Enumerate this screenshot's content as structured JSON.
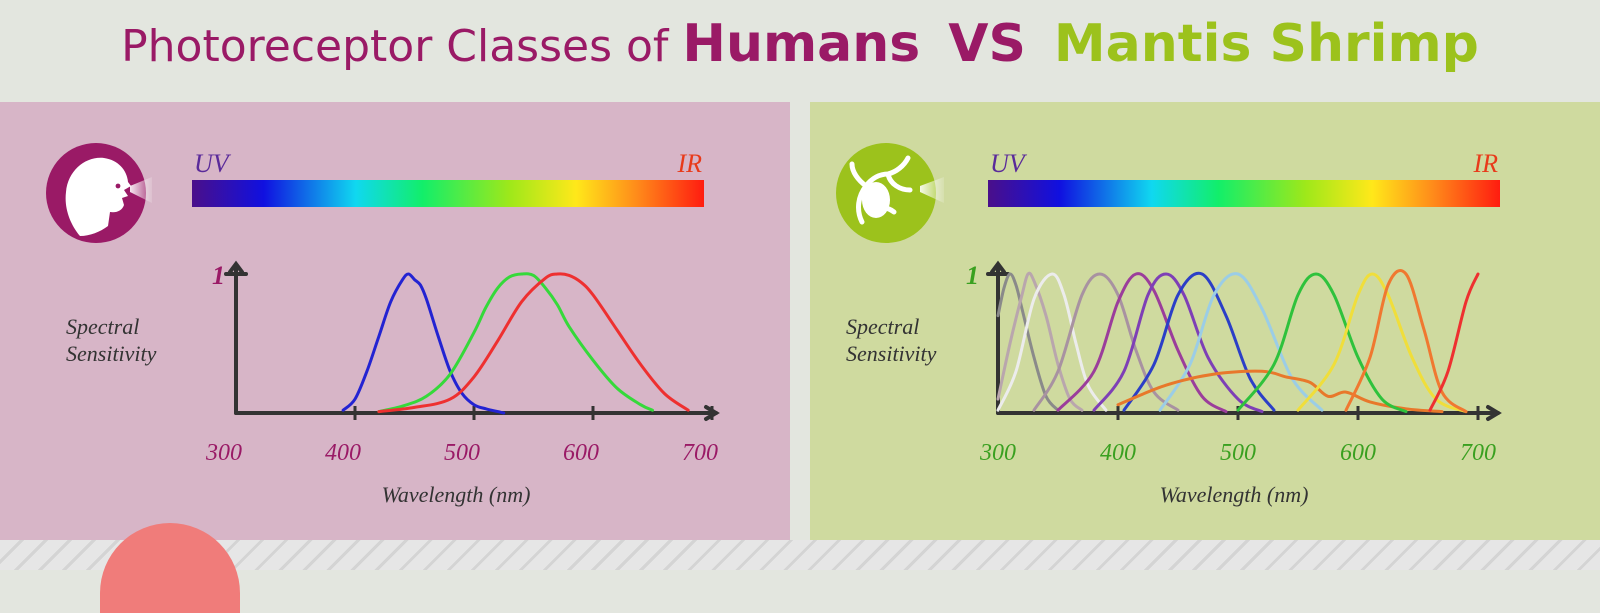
{
  "title": {
    "part1": "Photoreceptor Classes of",
    "part2": "Humans",
    "part3": "VS",
    "part4": "Mantis Shrimp"
  },
  "colors": {
    "magenta": "#9a1a66",
    "green": "#9cc21c",
    "human_bg": "#d7b5c7",
    "shrimp_bg": "#cfda9f",
    "uv_label": "#5a2a9a",
    "ir_label": "#e83a1a"
  },
  "icons": {
    "human": "human-head-eye-icon",
    "shrimp": "mantis-shrimp-icon"
  },
  "chart_data": [
    {
      "type": "line",
      "title": "Humans",
      "spectrum_labels": {
        "left": "UV",
        "right": "IR"
      },
      "xlabel": "Wavelength (nm)",
      "ylabel": "Spectral Sensitivity",
      "xticks": [
        "300",
        "400",
        "500",
        "600",
        "700"
      ],
      "yticks": [
        "1"
      ],
      "xlim": [
        300,
        700
      ],
      "ylim": [
        0,
        1
      ],
      "series": [
        {
          "color": "#2323d2",
          "x": [
            390,
            400,
            410,
            420,
            430,
            440,
            445,
            450,
            455,
            460,
            470,
            480,
            490,
            500,
            510,
            520,
            525
          ],
          "y": [
            0.02,
            0.1,
            0.3,
            0.55,
            0.8,
            0.96,
            1.0,
            0.96,
            0.92,
            0.82,
            0.55,
            0.3,
            0.14,
            0.06,
            0.03,
            0.01,
            0.0
          ]
        },
        {
          "color": "#35d93a",
          "x": [
            420,
            440,
            460,
            480,
            500,
            510,
            520,
            530,
            540,
            550,
            560,
            570,
            580,
            600,
            620,
            640,
            650
          ],
          "y": [
            0.01,
            0.05,
            0.12,
            0.28,
            0.58,
            0.76,
            0.9,
            0.98,
            1.0,
            0.99,
            0.9,
            0.78,
            0.62,
            0.38,
            0.18,
            0.06,
            0.02
          ]
        },
        {
          "color": "#ee3030",
          "x": [
            420,
            450,
            480,
            500,
            520,
            540,
            560,
            570,
            580,
            590,
            600,
            620,
            640,
            660,
            680
          ],
          "y": [
            0.01,
            0.04,
            0.1,
            0.26,
            0.52,
            0.8,
            0.97,
            1.0,
            0.99,
            0.94,
            0.85,
            0.6,
            0.35,
            0.14,
            0.02
          ]
        }
      ]
    },
    {
      "type": "line",
      "title": "Mantis Shrimp",
      "spectrum_labels": {
        "left": "UV",
        "right": "IR"
      },
      "xlabel": "Wavelength (nm)",
      "ylabel": "Spectral Sensitivity",
      "xticks": [
        "300",
        "400",
        "500",
        "600",
        "700"
      ],
      "yticks": [
        "1"
      ],
      "xlim": [
        300,
        700
      ],
      "ylim": [
        0,
        1
      ],
      "series": [
        {
          "color": "#8a8a8a",
          "x": [
            300,
            305,
            310,
            315,
            320,
            330,
            340,
            350
          ],
          "y": [
            0.7,
            0.9,
            1.0,
            0.92,
            0.75,
            0.4,
            0.12,
            0.02
          ]
        },
        {
          "color": "#b9a6ad",
          "x": [
            300,
            310,
            320,
            325,
            330,
            340,
            350,
            360,
            370
          ],
          "y": [
            0.1,
            0.5,
            0.85,
            1.0,
            0.95,
            0.7,
            0.35,
            0.1,
            0.02
          ]
        },
        {
          "color": "#ececec",
          "x": [
            300,
            315,
            330,
            345,
            355,
            365,
            375,
            390
          ],
          "y": [
            0.02,
            0.3,
            0.82,
            1.0,
            0.85,
            0.5,
            0.2,
            0.02
          ]
        },
        {
          "color": "#a892a1",
          "x": [
            330,
            350,
            370,
            385,
            400,
            415,
            430,
            450
          ],
          "y": [
            0.02,
            0.3,
            0.85,
            1.0,
            0.85,
            0.45,
            0.15,
            0.02
          ]
        },
        {
          "color": "#9b3d9b",
          "x": [
            350,
            380,
            400,
            415,
            430,
            450,
            470,
            490
          ],
          "y": [
            0.02,
            0.3,
            0.8,
            1.0,
            0.88,
            0.45,
            0.12,
            0.01
          ]
        },
        {
          "color": "#7e3fb6",
          "x": [
            380,
            405,
            425,
            440,
            455,
            475,
            500,
            520
          ],
          "y": [
            0.02,
            0.3,
            0.85,
            1.0,
            0.85,
            0.4,
            0.1,
            0.01
          ]
        },
        {
          "color": "#2b3fc7",
          "x": [
            405,
            430,
            450,
            470,
            490,
            510,
            530
          ],
          "y": [
            0.02,
            0.35,
            0.85,
            1.0,
            0.7,
            0.25,
            0.02
          ]
        },
        {
          "color": "#9bcde6",
          "x": [
            435,
            460,
            480,
            500,
            520,
            545,
            570
          ],
          "y": [
            0.02,
            0.35,
            0.85,
            1.0,
            0.75,
            0.25,
            0.02
          ]
        },
        {
          "color": "#e8782b",
          "x": [
            400,
            440,
            480,
            520,
            540,
            560,
            575,
            590,
            610,
            640,
            670
          ],
          "y": [
            0.06,
            0.2,
            0.28,
            0.3,
            0.26,
            0.22,
            0.12,
            0.15,
            0.08,
            0.03,
            0.01
          ]
        },
        {
          "color": "#2fc23c",
          "x": [
            500,
            530,
            550,
            565,
            580,
            600,
            620,
            640
          ],
          "y": [
            0.02,
            0.35,
            0.85,
            1.0,
            0.85,
            0.4,
            0.1,
            0.01
          ]
        },
        {
          "color": "#f0de3a",
          "x": [
            550,
            580,
            600,
            612,
            625,
            645,
            665,
            690
          ],
          "y": [
            0.02,
            0.35,
            0.85,
            1.0,
            0.85,
            0.4,
            0.1,
            0.01
          ]
        },
        {
          "color": "#f07830",
          "x": [
            590,
            610,
            625,
            640,
            655,
            670,
            690
          ],
          "y": [
            0.02,
            0.4,
            0.92,
            1.0,
            0.6,
            0.15,
            0.01
          ]
        },
        {
          "color": "#ee3030",
          "x": [
            660,
            675,
            690,
            700
          ],
          "y": [
            0.02,
            0.3,
            0.8,
            1.0
          ]
        }
      ]
    }
  ]
}
